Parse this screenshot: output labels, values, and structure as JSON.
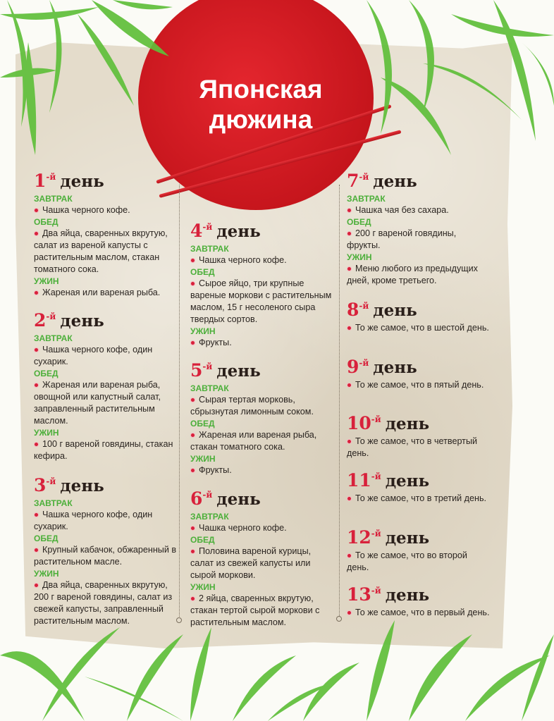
{
  "title_line1": "Японская",
  "title_line2": "дюжина",
  "day_word": "день",
  "suffix": "-й",
  "colors": {
    "accent_red": "#d8213b",
    "meal_green": "#4caf3a",
    "paper": "#e4dccb"
  },
  "days": [
    {
      "num": "1",
      "meals": [
        {
          "label": "ЗАВТРАК",
          "text": "Чашка черного кофе."
        },
        {
          "label": "ОБЕД",
          "text": "Два яйца, сваренных вкрутую, салат из вареной капусты с растительным маслом, стакан томатного сока."
        },
        {
          "label": "УЖИН",
          "text": "Жареная или вареная рыба."
        }
      ]
    },
    {
      "num": "2",
      "meals": [
        {
          "label": "ЗАВТРАК",
          "text": "Чашка черного кофе, один сухарик."
        },
        {
          "label": "ОБЕД",
          "text": "Жареная или вареная рыба, овощной или капустный салат, заправленный растительным маслом."
        },
        {
          "label": "УЖИН",
          "text": "100 г вареной говядины, стакан кефира."
        }
      ]
    },
    {
      "num": "3",
      "meals": [
        {
          "label": "ЗАВТРАК",
          "text": "Чашка черного кофе, один сухарик."
        },
        {
          "label": "ОБЕД",
          "text": "Крупный кабачок, обжаренный в растительном масле."
        },
        {
          "label": "УЖИН",
          "text": "Два яйца, сваренных вкрутую, 200 г вареной говядины, салат из свежей капусты, заправленный растительным маслом."
        }
      ]
    },
    {
      "num": "4",
      "meals": [
        {
          "label": "ЗАВТРАК",
          "text": "Чашка черного кофе."
        },
        {
          "label": "ОБЕД",
          "text": "Сырое яйцо, три крупные вареные моркови с растительным маслом, 15 г несоленого сыра твердых сортов."
        },
        {
          "label": "УЖИН",
          "text": "Фрукты."
        }
      ]
    },
    {
      "num": "5",
      "meals": [
        {
          "label": "ЗАВТРАК",
          "text": "Сырая тертая морковь, сбрызнутая лимонным соком."
        },
        {
          "label": "ОБЕД",
          "text": "Жареная или вареная рыба, стакан томатного сока."
        },
        {
          "label": "УЖИН",
          "text": "Фрукты."
        }
      ]
    },
    {
      "num": "6",
      "meals": [
        {
          "label": "ЗАВТРАК",
          "text": "Чашка черного кофе."
        },
        {
          "label": "ОБЕД",
          "text": "Половина вареной курицы, салат из свежей капусты или сырой моркови."
        },
        {
          "label": "УЖИН",
          "text": "2 яйца, сваренных вкрутую, стакан тертой сырой моркови с растительным маслом."
        }
      ]
    },
    {
      "num": "7",
      "meals": [
        {
          "label": "ЗАВТРАК",
          "text": "Чашка чая без сахара."
        },
        {
          "label": "ОБЕД",
          "text": "200 г вареной говядины, фрукты."
        },
        {
          "label": "УЖИН",
          "text": "Меню любого из предыдущих дней, кроме третьего."
        }
      ]
    },
    {
      "num": "8",
      "meals": [
        {
          "label": "",
          "text": "То же самое, что в шестой день."
        }
      ]
    },
    {
      "num": "9",
      "meals": [
        {
          "label": "",
          "text": "То же самое, что в пятый день."
        }
      ]
    },
    {
      "num": "10",
      "meals": [
        {
          "label": "",
          "text": "То же самое, что в четвертый день."
        }
      ]
    },
    {
      "num": "11",
      "meals": [
        {
          "label": "",
          "text": "То же самое, что в третий день."
        }
      ]
    },
    {
      "num": "12",
      "meals": [
        {
          "label": "",
          "text": "То же самое, что во второй день."
        }
      ]
    },
    {
      "num": "13",
      "meals": [
        {
          "label": "",
          "text": "То же самое, что в первый день."
        }
      ]
    }
  ]
}
